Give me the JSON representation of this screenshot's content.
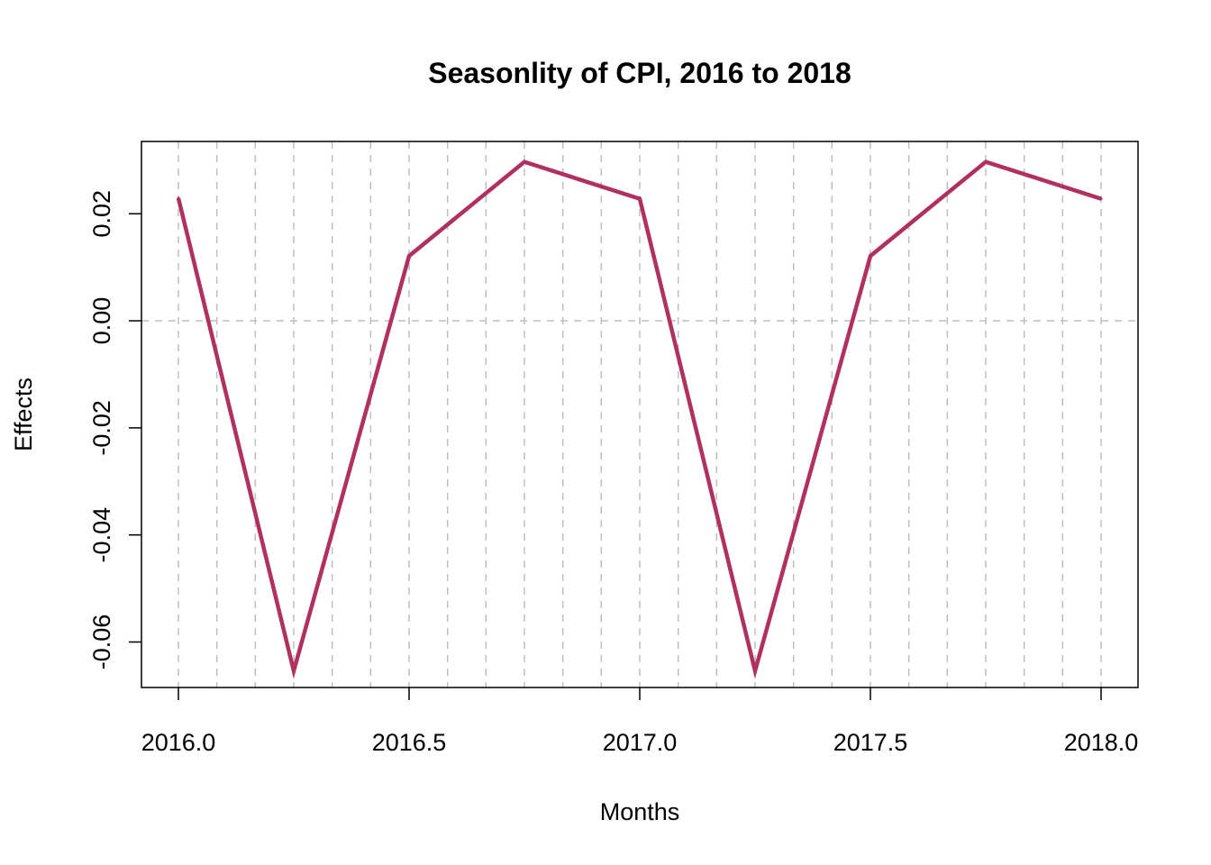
{
  "chart_data": {
    "type": "line",
    "title": "Seasonlity of CPI, 2016 to 2018",
    "xlabel": "Months",
    "ylabel": "Effects",
    "xlim": [
      2016.0,
      2018.0
    ],
    "ylim": [
      -0.0685,
      0.0335
    ],
    "x_ticks": [
      2016.0,
      2016.5,
      2017.0,
      2017.5,
      2018.0
    ],
    "x_tick_labels": [
      "2016.0",
      "2016.5",
      "2017.0",
      "2017.5",
      "2018.0"
    ],
    "y_ticks": [
      -0.06,
      -0.04,
      -0.02,
      0.0,
      0.02
    ],
    "y_tick_labels": [
      "-0.06",
      "-0.04",
      "-0.02",
      "0.00",
      "0.02"
    ],
    "grid": true,
    "grid_v_step": 0.0833333333,
    "grid_h_values": [
      0.0
    ],
    "series": [
      {
        "color": "#b03060",
        "x": [
          2016.0,
          2016.25,
          2016.5,
          2016.75,
          2017.0,
          2017.25,
          2017.5,
          2017.75,
          2018.0
        ],
        "values": [
          0.0229,
          -0.0654,
          0.0121,
          0.0297,
          0.0228,
          -0.0654,
          0.0121,
          0.0297,
          0.0228
        ]
      }
    ]
  }
}
